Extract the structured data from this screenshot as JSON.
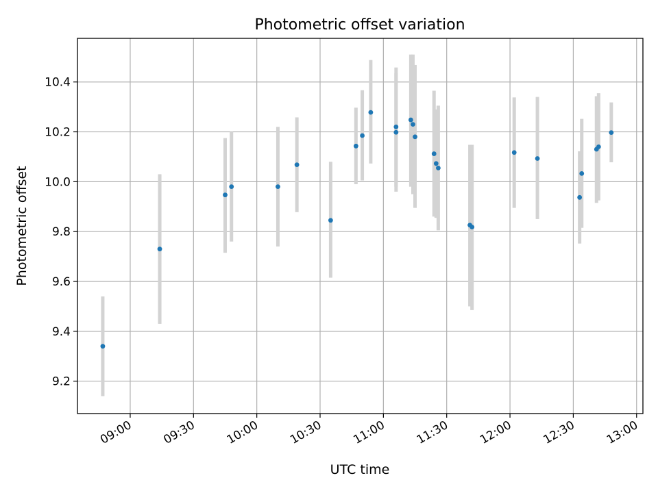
{
  "chart_data": {
    "type": "scatter",
    "title": "Photometric offset variation",
    "xlabel": "UTC time",
    "ylabel": "Photometric offset",
    "xlim_minutes": [
      515.0,
      783.0
    ],
    "ylim": [
      9.07,
      10.575
    ],
    "x_ticks": [
      "09:00",
      "09:30",
      "10:00",
      "10:30",
      "11:00",
      "11:30",
      "12:00",
      "12:30",
      "13:00"
    ],
    "y_ticks": [
      "9.2",
      "9.4",
      "9.6",
      "9.8",
      "10.0",
      "10.2",
      "10.4"
    ],
    "grid": true,
    "colors": {
      "point": "#1f77b4",
      "errorbar": "#d3d3d3",
      "grid": "#b0b0b0"
    },
    "points": [
      {
        "time": "08:47",
        "y": 9.34,
        "err_low": 9.14,
        "err_high": 9.54
      },
      {
        "time": "09:14",
        "y": 9.73,
        "err_low": 9.43,
        "err_high": 10.03
      },
      {
        "time": "09:45",
        "y": 9.947,
        "err_low": 9.715,
        "err_high": 10.175
      },
      {
        "time": "09:48",
        "y": 9.98,
        "err_low": 9.76,
        "err_high": 10.2
      },
      {
        "time": "10:10",
        "y": 9.98,
        "err_low": 9.74,
        "err_high": 10.22
      },
      {
        "time": "10:19",
        "y": 10.068,
        "err_low": 9.878,
        "err_high": 10.258
      },
      {
        "time": "10:35",
        "y": 9.845,
        "err_low": 9.615,
        "err_high": 10.08
      },
      {
        "time": "10:47",
        "y": 10.143,
        "err_low": 9.99,
        "err_high": 10.297
      },
      {
        "time": "10:50",
        "y": 10.185,
        "err_low": 10.005,
        "err_high": 10.367
      },
      {
        "time": "10:54",
        "y": 10.278,
        "err_low": 10.073,
        "err_high": 10.488
      },
      {
        "time": "11:06",
        "y": 10.198,
        "err_low": 9.96,
        "err_high": 10.435
      },
      {
        "time": "11:06",
        "y": 10.22,
        "err_low": 9.98,
        "err_high": 10.458
      },
      {
        "time": "11:13",
        "y": 10.248,
        "err_low": 9.98,
        "err_high": 10.51
      },
      {
        "time": "11:14",
        "y": 10.23,
        "err_low": 9.95,
        "err_high": 10.51
      },
      {
        "time": "11:15",
        "y": 10.18,
        "err_low": 9.895,
        "err_high": 10.468
      },
      {
        "time": "11:24",
        "y": 10.112,
        "err_low": 9.86,
        "err_high": 10.365
      },
      {
        "time": "11:25",
        "y": 10.073,
        "err_low": 9.855,
        "err_high": 10.29
      },
      {
        "time": "11:26",
        "y": 10.055,
        "err_low": 9.805,
        "err_high": 10.305
      },
      {
        "time": "11:41",
        "y": 9.826,
        "err_low": 9.5,
        "err_high": 10.148
      },
      {
        "time": "11:42",
        "y": 9.818,
        "err_low": 9.485,
        "err_high": 10.148
      },
      {
        "time": "12:02",
        "y": 10.117,
        "err_low": 9.895,
        "err_high": 10.338
      },
      {
        "time": "12:13",
        "y": 10.093,
        "err_low": 9.85,
        "err_high": 10.34
      },
      {
        "time": "12:33",
        "y": 9.937,
        "err_low": 9.752,
        "err_high": 10.122
      },
      {
        "time": "12:34",
        "y": 10.033,
        "err_low": 9.815,
        "err_high": 10.252
      },
      {
        "time": "12:41",
        "y": 10.13,
        "err_low": 9.915,
        "err_high": 10.343
      },
      {
        "time": "12:42",
        "y": 10.14,
        "err_low": 9.925,
        "err_high": 10.355
      },
      {
        "time": "12:48",
        "y": 10.197,
        "err_low": 10.078,
        "err_high": 10.318
      }
    ]
  }
}
